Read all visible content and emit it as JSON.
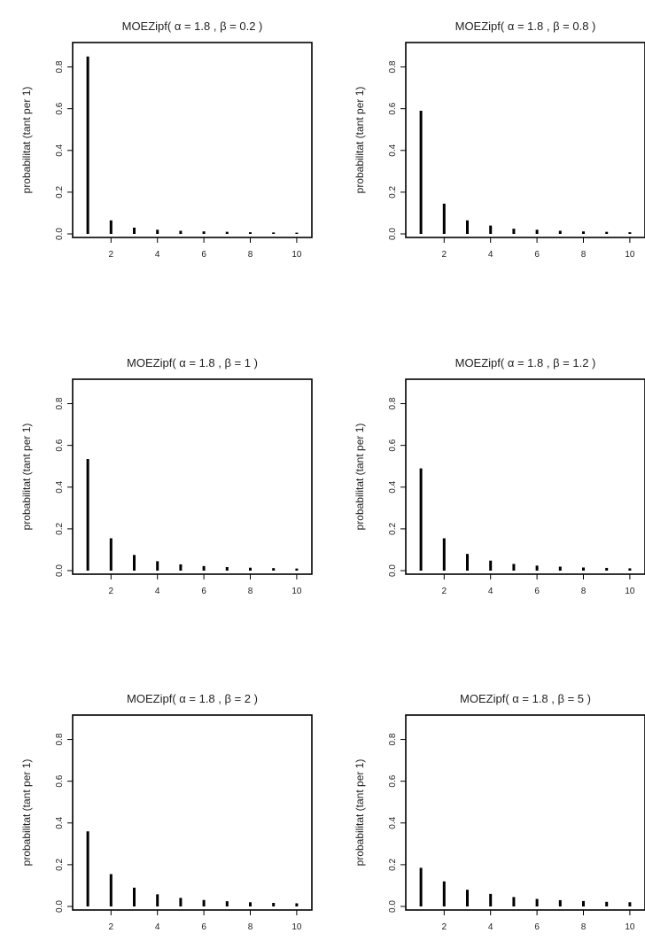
{
  "figure": {
    "background": "#ffffff",
    "ink": "#000000"
  },
  "chart_data": [
    {
      "type": "bar",
      "title": "MOEZipf( α = 1.8 ,  β = 0.2 )",
      "ylabel": "probabilitat (tant per 1)",
      "xlabel": "",
      "x": [
        1,
        2,
        3,
        4,
        5,
        6,
        7,
        8,
        9,
        10
      ],
      "values": [
        0.85,
        0.065,
        0.03,
        0.02,
        0.015,
        0.012,
        0.01,
        0.008,
        0.007,
        0.006
      ],
      "xlim": [
        0.5,
        10.5
      ],
      "ylim": [
        0,
        0.9
      ],
      "xticks": [
        2,
        4,
        6,
        8,
        10
      ],
      "yticks": [
        0.0,
        0.2,
        0.4,
        0.6,
        0.8
      ],
      "ytick_labels": [
        "0.0",
        "0.2",
        "0.4",
        "0.6",
        "0.8"
      ],
      "grid": false
    },
    {
      "type": "bar",
      "title": "MOEZipf( α = 1.8 ,  β = 0.8 )",
      "ylabel": "probabilitat (tant per 1)",
      "xlabel": "",
      "x": [
        1,
        2,
        3,
        4,
        5,
        6,
        7,
        8,
        9,
        10
      ],
      "values": [
        0.59,
        0.145,
        0.065,
        0.04,
        0.025,
        0.02,
        0.015,
        0.012,
        0.01,
        0.008
      ],
      "xlim": [
        0.5,
        10.5
      ],
      "ylim": [
        0,
        0.9
      ],
      "xticks": [
        2,
        4,
        6,
        8,
        10
      ],
      "yticks": [
        0.0,
        0.2,
        0.4,
        0.6,
        0.8
      ],
      "ytick_labels": [
        "0.0",
        "0.2",
        "0.4",
        "0.6",
        "0.8"
      ],
      "grid": false
    },
    {
      "type": "bar",
      "title": "MOEZipf( α = 1.8 ,  β = 1 )",
      "ylabel": "probabilitat (tant per 1)",
      "xlabel": "",
      "x": [
        1,
        2,
        3,
        4,
        5,
        6,
        7,
        8,
        9,
        10
      ],
      "values": [
        0.535,
        0.155,
        0.075,
        0.045,
        0.03,
        0.022,
        0.017,
        0.014,
        0.012,
        0.01
      ],
      "xlim": [
        0.5,
        10.5
      ],
      "ylim": [
        0,
        0.9
      ],
      "xticks": [
        2,
        4,
        6,
        8,
        10
      ],
      "yticks": [
        0.0,
        0.2,
        0.4,
        0.6,
        0.8
      ],
      "ytick_labels": [
        "0.0",
        "0.2",
        "0.4",
        "0.6",
        "0.8"
      ],
      "grid": false
    },
    {
      "type": "bar",
      "title": "MOEZipf( α = 1.8 ,  β = 1.2 )",
      "ylabel": "probabilitat (tant per 1)",
      "xlabel": "",
      "x": [
        1,
        2,
        3,
        4,
        5,
        6,
        7,
        8,
        9,
        10
      ],
      "values": [
        0.49,
        0.155,
        0.08,
        0.048,
        0.032,
        0.024,
        0.019,
        0.015,
        0.013,
        0.011
      ],
      "xlim": [
        0.5,
        10.5
      ],
      "ylim": [
        0,
        0.9
      ],
      "xticks": [
        2,
        4,
        6,
        8,
        10
      ],
      "yticks": [
        0.0,
        0.2,
        0.4,
        0.6,
        0.8
      ],
      "ytick_labels": [
        "0.0",
        "0.2",
        "0.4",
        "0.6",
        "0.8"
      ],
      "grid": false
    },
    {
      "type": "bar",
      "title": "MOEZipf( α = 1.8 ,  β = 2 )",
      "ylabel": "probabilitat (tant per 1)",
      "xlabel": "",
      "x": [
        1,
        2,
        3,
        4,
        5,
        6,
        7,
        8,
        9,
        10
      ],
      "values": [
        0.36,
        0.155,
        0.09,
        0.058,
        0.041,
        0.031,
        0.025,
        0.02,
        0.017,
        0.015
      ],
      "xlim": [
        0.5,
        10.5
      ],
      "ylim": [
        0,
        0.9
      ],
      "xticks": [
        2,
        4,
        6,
        8,
        10
      ],
      "yticks": [
        0.0,
        0.2,
        0.4,
        0.6,
        0.8
      ],
      "ytick_labels": [
        "0.0",
        "0.2",
        "0.4",
        "0.6",
        "0.8"
      ],
      "grid": false
    },
    {
      "type": "bar",
      "title": "MOEZipf( α = 1.8 ,  β = 5 )",
      "ylabel": "probabilitat (tant per 1)",
      "xlabel": "",
      "x": [
        1,
        2,
        3,
        4,
        5,
        6,
        7,
        8,
        9,
        10
      ],
      "values": [
        0.185,
        0.12,
        0.08,
        0.06,
        0.045,
        0.036,
        0.03,
        0.026,
        0.022,
        0.02
      ],
      "xlim": [
        0.5,
        10.5
      ],
      "ylim": [
        0,
        0.9
      ],
      "xticks": [
        2,
        4,
        6,
        8,
        10
      ],
      "yticks": [
        0.0,
        0.2,
        0.4,
        0.6,
        0.8
      ],
      "ytick_labels": [
        "0.0",
        "0.2",
        "0.4",
        "0.6",
        "0.8"
      ],
      "grid": false
    }
  ]
}
